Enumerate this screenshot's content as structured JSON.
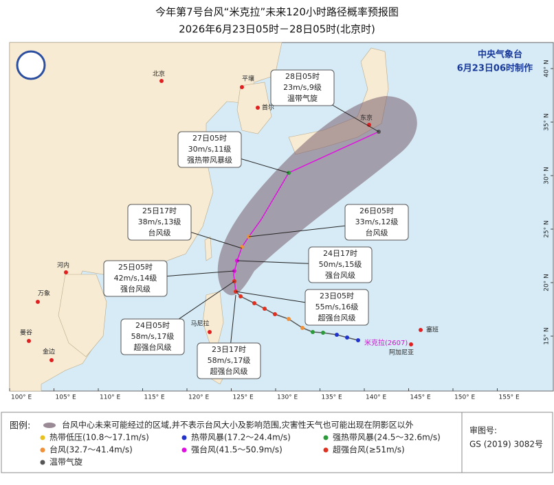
{
  "header": {
    "title": "今年第7号台风“米克拉”未来120小时路径概率预报图",
    "subtitle": "2026年6月23日05时－28日05时(北京时)"
  },
  "agency": {
    "name": "中央气象台",
    "made": "6月23日06时制作"
  },
  "map": {
    "lon_ticks": [
      {
        "value": 100,
        "label": "100° E"
      },
      {
        "value": 105,
        "label": "105° E"
      },
      {
        "value": 110,
        "label": "110° E"
      },
      {
        "value": 115,
        "label": "115° E"
      },
      {
        "value": 120,
        "label": "120° E"
      },
      {
        "value": 125,
        "label": "125° E"
      },
      {
        "value": 130,
        "label": "130° E"
      },
      {
        "value": 135,
        "label": "135° E"
      },
      {
        "value": 140,
        "label": "140° E"
      },
      {
        "value": 145,
        "label": "145° E"
      },
      {
        "value": 150,
        "label": "150° E"
      },
      {
        "value": 155,
        "label": "155° E"
      }
    ],
    "lat_ticks": [
      {
        "value": 40,
        "label": "40° N"
      },
      {
        "value": 35,
        "label": "35° N"
      },
      {
        "value": 30,
        "label": "30° N"
      },
      {
        "value": 25,
        "label": "25° N"
      },
      {
        "value": 20,
        "label": "20° N"
      },
      {
        "value": 15,
        "label": "15° N"
      }
    ],
    "cities": [
      "北京",
      "平壤",
      "首尔",
      "东京",
      "河内",
      "万象",
      "曼谷",
      "金边",
      "马尼拉",
      "塞班",
      "阿加尼亚"
    ],
    "typhoon_name": "米克拉(2607)"
  },
  "forecasts": [
    [
      "28日05时",
      "23m/s,9级",
      "温带气旋"
    ],
    [
      "27日05时",
      "30m/s,11级",
      "强热带风暴级"
    ],
    [
      "26日05时",
      "33m/s,12级",
      "台风级"
    ],
    [
      "25日17时",
      "38m/s,13级",
      "台风级"
    ],
    [
      "24日17时",
      "50m/s,15级",
      "强台风级"
    ],
    [
      "25日05时",
      "42m/s,14级",
      "强台风级"
    ],
    [
      "23日05时",
      "55m/s,16级",
      "超强台风级"
    ],
    [
      "24日05时",
      "58m/s,17级",
      "超强台风级"
    ],
    [
      "23日17时",
      "58m/s,17级",
      "超强台风级"
    ]
  ],
  "legend": {
    "label": "图例:",
    "cone": "台风中心未来可能经过的区域,并不表示台风大小及影响范围,灾害性天气也可能出现在阴影区以外",
    "items": [
      "热带低压(10.8～17.1m/s)",
      "热带风暴(17.2～24.4m/s)",
      "强热带风暴(24.5～32.6m/s)",
      "台风(32.7～41.4m/s)",
      "强台风(41.5～50.9m/s)",
      "超强台风(≥51m/s)",
      "温带气旋"
    ],
    "approval_label": "审图号:",
    "approval_no": "GS (2019) 3082号"
  }
}
